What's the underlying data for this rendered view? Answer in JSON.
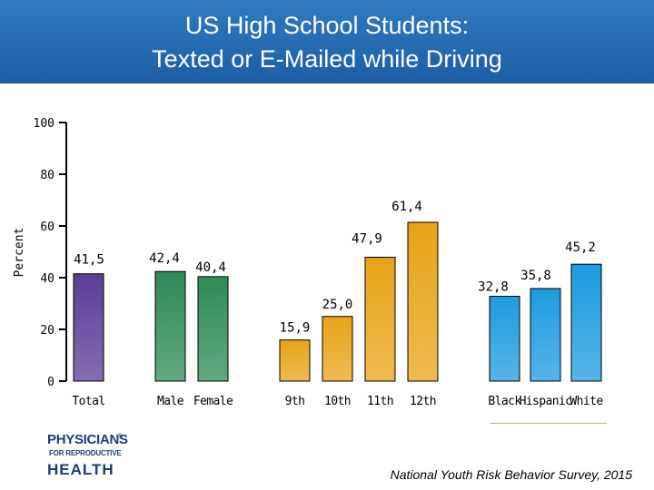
{
  "header": {
    "title_line1": "US High School Students:",
    "title_line2": "Texted or E-Mailed while Driving"
  },
  "chart_data": {
    "type": "bar",
    "ylabel": "Percent",
    "ylim": [
      0,
      100
    ],
    "yticks": [
      "0",
      "20",
      "40",
      "60",
      "80",
      "100"
    ],
    "grid": false,
    "groups": [
      {
        "name": "",
        "bars": [
          {
            "label": "Total",
            "value": 41.5,
            "display": "41,5",
            "color": "#5b3d96"
          }
        ]
      },
      {
        "name": "",
        "bars": [
          {
            "label": "Male",
            "value": 42.4,
            "display": "42,4",
            "color": "#2e8b57"
          },
          {
            "label": "Female",
            "value": 40.4,
            "display": "40,4",
            "color": "#2e8b57"
          }
        ]
      },
      {
        "name": "",
        "bars": [
          {
            "label": "9th",
            "value": 15.9,
            "display": "15,9",
            "color": "#e8a317"
          },
          {
            "label": "10th",
            "value": 25.0,
            "display": "25,0",
            "color": "#e8a317"
          },
          {
            "label": "11th",
            "value": 47.9,
            "display": "47,9",
            "color": "#e8a317"
          },
          {
            "label": "12th",
            "value": 61.4,
            "display": "61,4",
            "color": "#e8a317"
          }
        ]
      },
      {
        "name": "",
        "bars": [
          {
            "label": "Black",
            "value": 32.8,
            "display": "32,8",
            "color": "#1e9be0"
          },
          {
            "label": "Hispanic",
            "value": 35.8,
            "display": "35,8",
            "color": "#1e9be0"
          },
          {
            "label": "White",
            "value": 45.2,
            "display": "45,2",
            "color": "#1e9be0"
          }
        ]
      }
    ]
  },
  "footer": {
    "logo_line1": "PHYSICIANS",
    "logo_registered": "®",
    "logo_line2": "FOR REPRODUCTIVE",
    "logo_line3": "HEALTH",
    "source": "National Youth Risk Behavior Survey, 2015"
  }
}
